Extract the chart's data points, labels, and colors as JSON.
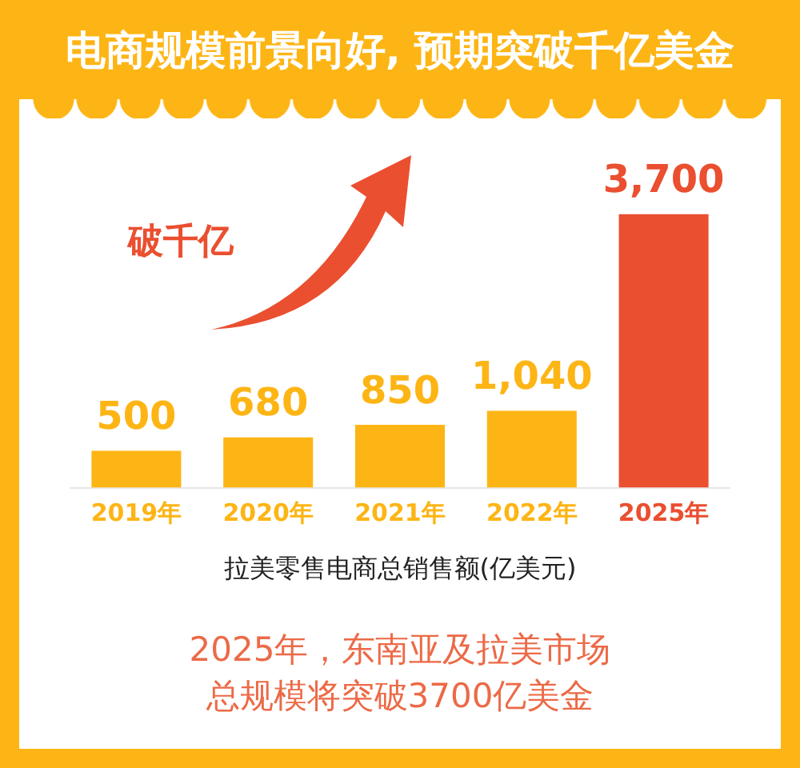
{
  "chart_data": {
    "type": "bar",
    "title": "电商规模前景向好, 预期突破千亿美金",
    "xlabel": "拉美零售电商总销售额(亿美元)",
    "categories": [
      "2019年",
      "2020年",
      "2021年",
      "2022年",
      "2025年"
    ],
    "values": [
      500,
      680,
      850,
      1040,
      3700
    ],
    "colors": [
      "#fdb515",
      "#fdb515",
      "#fdb515",
      "#fdb515",
      "#ea4f30"
    ],
    "value_labels": [
      "500",
      "680",
      "850",
      "1,040",
      "3,700"
    ],
    "annotations": [
      "破千亿",
      "2025年，东南亚及拉美市场总规模将突破3700亿美金"
    ]
  }
}
